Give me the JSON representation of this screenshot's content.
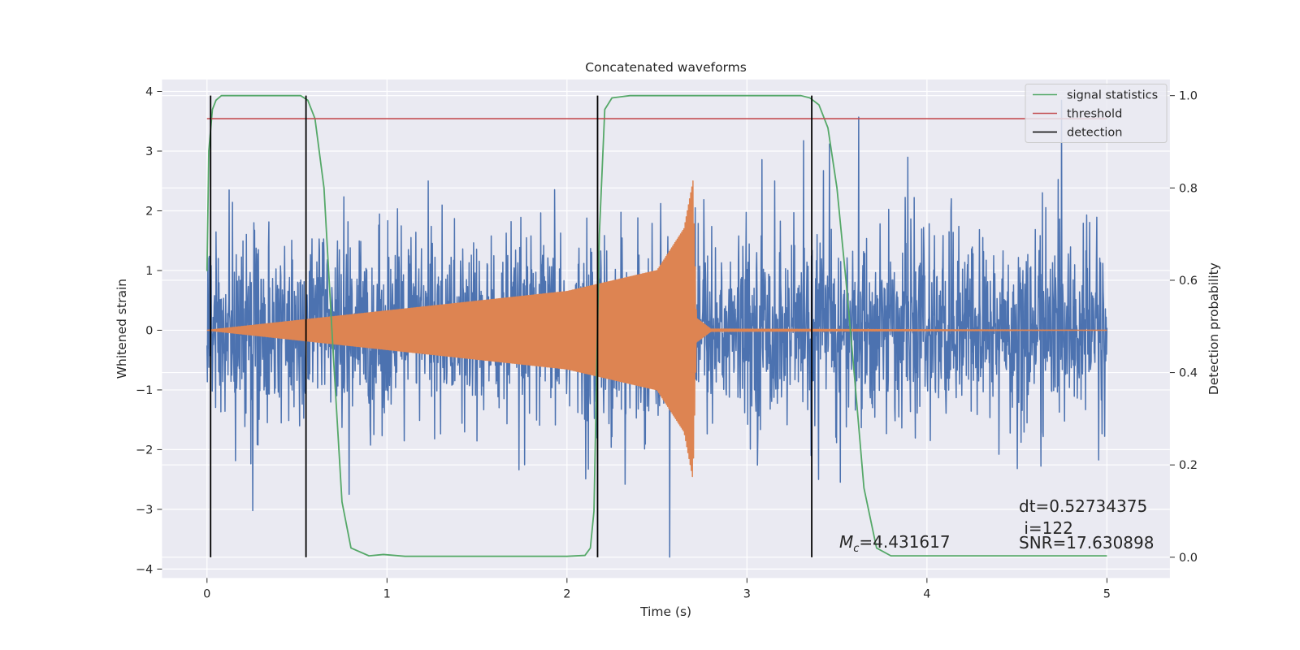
{
  "chart_data": {
    "type": "line",
    "title": "Concatenated waveforms",
    "xlabel": "Time (s)",
    "ylabel": "Whitened strain",
    "y2label": "Detection probability",
    "xlim": [
      -0.25,
      5.35
    ],
    "ylim": [
      -4.15,
      4.2
    ],
    "y2lim": [
      -0.045,
      1.035
    ],
    "x_ticks": [
      0,
      1,
      2,
      3,
      4,
      5
    ],
    "x_tick_labels": [
      "0",
      "1",
      "2",
      "3",
      "4",
      "5"
    ],
    "y_ticks": [
      4,
      3,
      2,
      1,
      0,
      -1,
      -2,
      -3,
      -4
    ],
    "y_tick_labels": [
      "4",
      "3",
      "2",
      "1",
      "0",
      "−1",
      "−2",
      "−3",
      "−4"
    ],
    "y2_ticks": [
      1.0,
      0.8,
      0.6,
      0.4,
      0.2,
      0.0
    ],
    "y2_tick_labels": [
      "1.0",
      "0.8",
      "0.6",
      "0.4",
      "0.2",
      "0.0"
    ],
    "grid": true,
    "legend_position": "top-right",
    "series": [
      {
        "kind": "noise",
        "axis": "left",
        "color": "#4c72b0",
        "x_range": [
          0,
          5
        ],
        "approx_std": 0.75,
        "approx_extremes": [
          -3.8,
          3.85
        ]
      },
      {
        "kind": "chirp",
        "axis": "left",
        "color": "#dd8452",
        "x_range": [
          0,
          5
        ],
        "segments": [
          {
            "t": 0.0,
            "amplitude": 0.0
          },
          {
            "t": 2.0,
            "amplitude": 0.65
          },
          {
            "t": 2.5,
            "amplitude": 1.0
          },
          {
            "t": 2.65,
            "amplitude": 1.7
          },
          {
            "t": 2.7,
            "amplitude": 2.5
          },
          {
            "t": 2.72,
            "amplitude": 0.2
          },
          {
            "t": 2.8,
            "amplitude": 0.02
          },
          {
            "t": 5.0,
            "amplitude": 0.0
          }
        ]
      },
      {
        "name": "signal statistics",
        "axis": "right",
        "color": "#55a868",
        "x": [
          0.0,
          0.01,
          0.03,
          0.05,
          0.08,
          0.15,
          0.3,
          0.45,
          0.52,
          0.56,
          0.6,
          0.65,
          0.7,
          0.75,
          0.8,
          0.9,
          0.98,
          1.1,
          1.5,
          2.0,
          2.1,
          2.13,
          2.15,
          2.18,
          2.21,
          2.25,
          2.35,
          2.5,
          3.0,
          3.3,
          3.35,
          3.4,
          3.45,
          3.5,
          3.55,
          3.6,
          3.65,
          3.72,
          3.8,
          4.0,
          4.3,
          4.6,
          5.0
        ],
        "values": [
          0.62,
          0.88,
          0.97,
          0.99,
          1.0,
          1.0,
          1.0,
          1.0,
          1.0,
          0.99,
          0.95,
          0.8,
          0.45,
          0.12,
          0.02,
          0.003,
          0.006,
          0.002,
          0.002,
          0.002,
          0.004,
          0.02,
          0.1,
          0.7,
          0.97,
          0.995,
          1.0,
          1.0,
          1.0,
          1.0,
          0.995,
          0.98,
          0.93,
          0.8,
          0.6,
          0.38,
          0.15,
          0.02,
          0.003,
          0.003,
          0.003,
          0.003,
          0.003
        ]
      },
      {
        "name": "threshold",
        "axis": "right",
        "color": "#c44e52",
        "x": [
          0,
          5
        ],
        "values": [
          0.95,
          0.95
        ]
      },
      {
        "name": "detection",
        "axis": "right",
        "color": "#000000",
        "x": [
          0.02,
          0.55,
          2.17,
          3.36
        ],
        "values": [
          1.0,
          1.0,
          1.0,
          1.0
        ]
      }
    ],
    "legend": [
      "signal statistics",
      "threshold",
      "detection"
    ],
    "annotations": {
      "mc": {
        "label": "M",
        "sub": "c",
        "value": "=4.431617"
      },
      "dt": "dt=0.52734375",
      "i": " i=122",
      "snr": "SNR=17.630898"
    }
  }
}
